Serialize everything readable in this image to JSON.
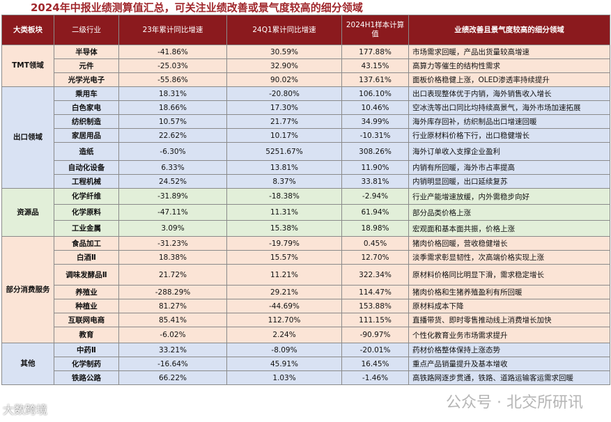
{
  "title": "2024年中报业绩测算值汇总，可关注业绩改善或景气度较高的细分领域",
  "headers": {
    "category": "大类板块",
    "industry": "二级行业",
    "col1": "23年累计同比增速",
    "col2": "24Q1累计同比增速",
    "col3": "2024H1样本计算值",
    "desc": "业绩改善且景气度较高的细分领域"
  },
  "groups": [
    {
      "name": "TMT领域",
      "rows": [
        {
          "industry": "半导体",
          "v1": "-41.86%",
          "v2": "30.59%",
          "v3": "177.88%",
          "desc": "市场需求回暖，产品出货量较高增速"
        },
        {
          "industry": "元件",
          "v1": "-25.03%",
          "v2": "32.90%",
          "v3": "43.15%",
          "desc": "高算力等催生的结构性需求"
        },
        {
          "industry": "光学光电子",
          "v1": "-55.86%",
          "v2": "90.02%",
          "v3": "137.61%",
          "desc": "面板价格稳健上涨，OLED渗透率持续提升"
        }
      ]
    },
    {
      "name": "出口领域",
      "rows": [
        {
          "industry": "乘用车",
          "v1": "18.31%",
          "v2": "-20.80%",
          "v3": "106.10%",
          "desc": "出口表现整体优于内销，海外销售收入增长"
        },
        {
          "industry": "白色家电",
          "v1": "18.66%",
          "v2": "17.30%",
          "v3": "10.46%",
          "desc": "空冰洗等出口同比均持续高景气，海外市场加速拓展"
        },
        {
          "industry": "纺织制造",
          "v1": "10.57%",
          "v2": "21.77%",
          "v3": "34.99%",
          "desc": "海外库存回补，纺织制品出口增速回暖"
        },
        {
          "industry": "家居用品",
          "v1": "22.62%",
          "v2": "10.17%",
          "v3": "-10.31%",
          "desc": "行业原材料价格下行，出口稳健增长"
        },
        {
          "industry": "造纸",
          "v1": "-6.30%",
          "v2": "5251.67%",
          "v3": "308.26%",
          "desc": "海外订单收入支撑企业盈利"
        },
        {
          "industry": "自动化设备",
          "v1": "6.33%",
          "v2": "13.81%",
          "v3": "11.90%",
          "desc": "内销有所回暖，海外市占率提高"
        },
        {
          "industry": "工程机械",
          "v1": "24.52%",
          "v2": "8.37%",
          "v3": "33.81%",
          "desc": "内销明显回暖，出口延续复苏"
        }
      ]
    },
    {
      "name": "资源品",
      "rows": [
        {
          "industry": "化学纤维",
          "v1": "-31.89%",
          "v2": "-18.38%",
          "v3": "-2.94%",
          "desc": "行业产能增速放缓，内外需稳步向好"
        },
        {
          "industry": "化学原料",
          "v1": "-47.11%",
          "v2": "11.31%",
          "v3": "61.94%",
          "desc": "部分品类价格上涨"
        },
        {
          "industry": "工业金属",
          "v1": "3.09%",
          "v2": "15.38%",
          "v3": "18.98%",
          "desc": "宏观面和基本面共振，价格上涨"
        }
      ]
    },
    {
      "name": "部分消费服务",
      "rows": [
        {
          "industry": "食品加工",
          "v1": "-31.23%",
          "v2": "-19.79%",
          "v3": "0.45%",
          "desc": "猪肉价格回暖，营收稳健增长"
        },
        {
          "industry": "白酒Ⅱ",
          "v1": "18.38%",
          "v2": "15.57%",
          "v3": "12.70%",
          "desc": "淡季需求彰显韧性，次高端价格实现上涨"
        },
        {
          "industry": "调味发酵品Ⅱ",
          "v1": "21.72%",
          "v2": "11.21%",
          "v3": "322.34%",
          "desc": "原材料价格同比明显下滑，需求稳定增长"
        },
        {
          "industry": "养殖业",
          "v1": "-288.29%",
          "v2": "29.21%",
          "v3": "114.47%",
          "desc": "猪肉价格和生猪养殖盈利有所回暖"
        },
        {
          "industry": "种植业",
          "v1": "81.27%",
          "v2": "-44.69%",
          "v3": "153.88%",
          "desc": "原材料成本下降"
        },
        {
          "industry": "互联网电商",
          "v1": "85.41%",
          "v2": "112.70%",
          "v3": "111.15%",
          "desc": "直播带货、即时零售推动线上消费增长加快"
        },
        {
          "industry": "教育",
          "v1": "-6.02%",
          "v2": "2.24%",
          "v3": "-90.97%",
          "desc": "个性化教育业务市场需求提升"
        }
      ]
    },
    {
      "name": "其他",
      "rows": [
        {
          "industry": "中药Ⅱ",
          "v1": "33.21%",
          "v2": "-8.09%",
          "v3": "-20.01%",
          "desc": "药材价格整体保持上涨态势"
        },
        {
          "industry": "化学制药",
          "v1": "-16.64%",
          "v2": "45.91%",
          "v3": "16.45%",
          "desc": "重点产品销量提升及基本增收"
        },
        {
          "industry": "铁路公路",
          "v1": "66.22%",
          "v2": "1.03%",
          "v3": "-1.46%",
          "desc": "高铁路网逐步贯通，铁路、道路运输客运需求回暖"
        }
      ]
    }
  ],
  "watermarks": {
    "right": "公众号 · 北交所研讯",
    "left": "大数跨境"
  }
}
